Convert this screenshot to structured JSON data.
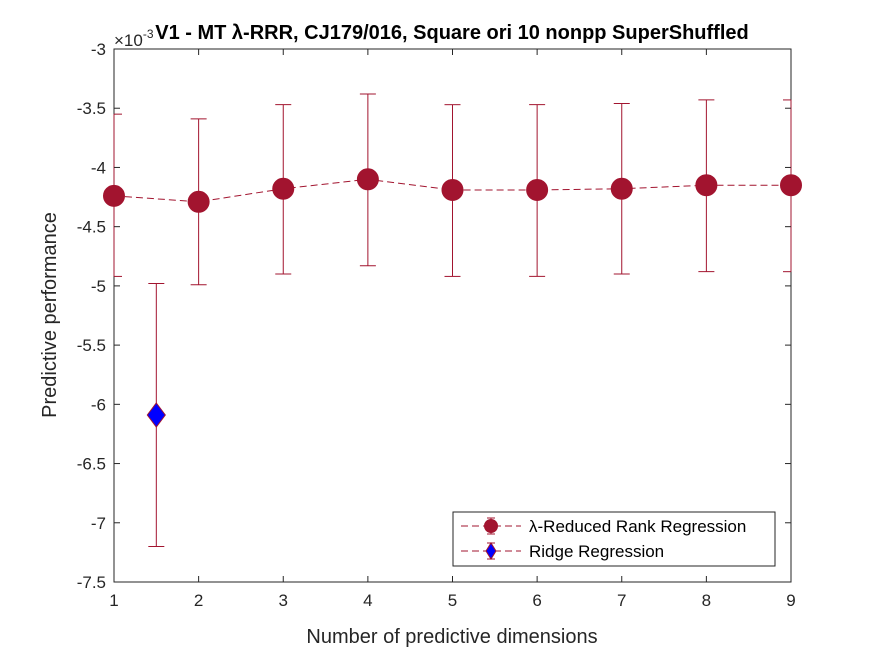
{
  "chart_data": {
    "type": "scatter",
    "title": "V1 - MT λ-RRR, CJ179/016, Square ori 10 nonpp  SuperShuffled",
    "xlabel": "Number of predictive dimensions",
    "ylabel": "Predictive performance",
    "y_exponent_label": "×10",
    "y_exponent_power": "-3",
    "xlim": [
      1,
      9
    ],
    "ylim": [
      -7.5,
      -3
    ],
    "x_ticks": [
      "1",
      "2",
      "3",
      "4",
      "5",
      "6",
      "7",
      "8",
      "9"
    ],
    "y_ticks": [
      "-3",
      "-3.5",
      "-4",
      "-4.5",
      "-5",
      "-5.5",
      "-6",
      "-6.5",
      "-7",
      "-7.5"
    ],
    "y_scale_note": "values shown in units of 10^-3",
    "grid": false,
    "legend_position": "bottom-right",
    "series": [
      {
        "name": "λ-Reduced Rank Regression",
        "marker": "circle",
        "line": "dashed",
        "color": "#A2142F",
        "x": [
          1,
          2,
          3,
          4,
          5,
          6,
          7,
          8,
          9
        ],
        "y": [
          -4.24,
          -4.29,
          -4.18,
          -4.1,
          -4.19,
          -4.19,
          -4.18,
          -4.15,
          -4.15
        ],
        "err_low": [
          -4.92,
          -4.99,
          -4.9,
          -4.83,
          -4.92,
          -4.92,
          -4.9,
          -4.88,
          -4.88
        ],
        "err_high": [
          -3.55,
          -3.59,
          -3.47,
          -3.38,
          -3.47,
          -3.47,
          -3.46,
          -3.43,
          -3.43
        ]
      },
      {
        "name": "Ridge Regression",
        "marker": "diamond",
        "line": "none",
        "color": "#A2142F",
        "marker_fill": "#0000FF",
        "x": [
          1.5
        ],
        "y": [
          -6.09
        ],
        "err_low": [
          -7.2
        ],
        "err_high": [
          -4.98
        ]
      }
    ]
  }
}
